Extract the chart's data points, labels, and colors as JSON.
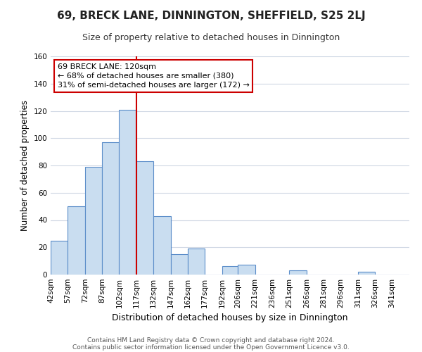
{
  "title": "69, BRECK LANE, DINNINGTON, SHEFFIELD, S25 2LJ",
  "subtitle": "Size of property relative to detached houses in Dinnington",
  "xlabel": "Distribution of detached houses by size in Dinnington",
  "ylabel": "Number of detached properties",
  "bin_labels": [
    "42sqm",
    "57sqm",
    "72sqm",
    "87sqm",
    "102sqm",
    "117sqm",
    "132sqm",
    "147sqm",
    "162sqm",
    "177sqm",
    "192sqm",
    "206sqm",
    "221sqm",
    "236sqm",
    "251sqm",
    "266sqm",
    "281sqm",
    "296sqm",
    "311sqm",
    "326sqm",
    "341sqm"
  ],
  "bin_edges": [
    42,
    57,
    72,
    87,
    102,
    117,
    132,
    147,
    162,
    177,
    192,
    206,
    221,
    236,
    251,
    266,
    281,
    296,
    311,
    326,
    341,
    356
  ],
  "counts": [
    25,
    50,
    79,
    97,
    121,
    83,
    43,
    15,
    19,
    0,
    6,
    7,
    0,
    0,
    3,
    0,
    0,
    0,
    2,
    0,
    0
  ],
  "bar_color": "#c9ddf0",
  "bar_edge_color": "#5b8dc9",
  "vline_x": 117,
  "vline_color": "#cc0000",
  "annotation_line1": "69 BRECK LANE: 120sqm",
  "annotation_line2": "← 68% of detached houses are smaller (380)",
  "annotation_line3": "31% of semi-detached houses are larger (172) →",
  "annotation_box_color": "#ffffff",
  "annotation_box_edge_color": "#cc0000",
  "ylim": [
    0,
    160
  ],
  "yticks": [
    0,
    20,
    40,
    60,
    80,
    100,
    120,
    140,
    160
  ],
  "footer1": "Contains HM Land Registry data © Crown copyright and database right 2024.",
  "footer2": "Contains public sector information licensed under the Open Government Licence v3.0.",
  "background_color": "#ffffff",
  "grid_color": "#d0d8e4",
  "title_fontsize": 11,
  "subtitle_fontsize": 9,
  "xlabel_fontsize": 9,
  "ylabel_fontsize": 8.5,
  "tick_fontsize": 7.5,
  "footer_fontsize": 6.5,
  "annotation_fontsize": 8
}
